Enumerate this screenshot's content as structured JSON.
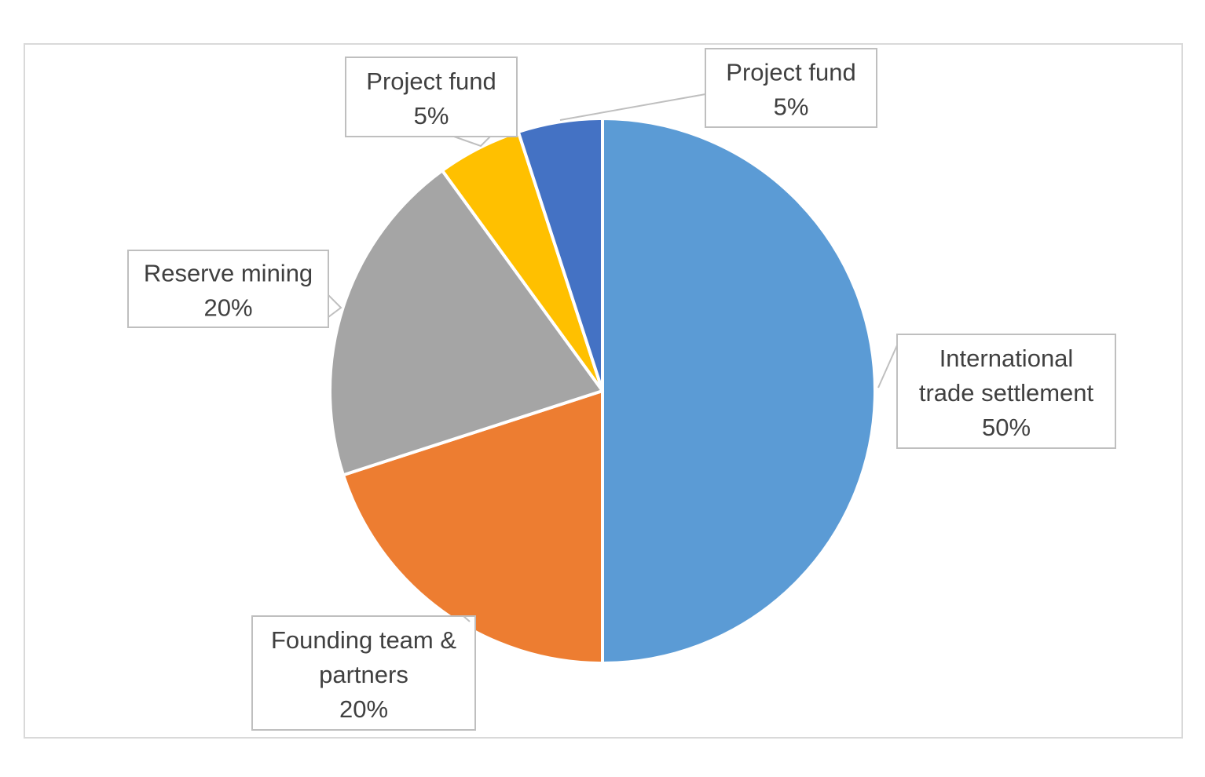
{
  "chart_data": {
    "type": "pie",
    "title": "",
    "slices": [
      {
        "label": "International trade settlement",
        "label_lines": [
          "International",
          "trade settlement"
        ],
        "value": 50,
        "display": "50%",
        "color": "#5B9BD5"
      },
      {
        "label": "Founding team & partners",
        "label_lines": [
          "Founding team &",
          "partners"
        ],
        "value": 20,
        "display": "20%",
        "color": "#ED7D31"
      },
      {
        "label": "Reserve mining",
        "label_lines": [
          "Reserve mining"
        ],
        "value": 20,
        "display": "20%",
        "color": "#A5A5A5"
      },
      {
        "label": "Project fund",
        "label_lines": [
          "Project fund"
        ],
        "value": 5,
        "display": "5%",
        "color": "#FFC000"
      },
      {
        "label": "Project fund",
        "label_lines": [
          "Project fund"
        ],
        "value": 5,
        "display": "5%",
        "color": "#4472C4"
      }
    ],
    "start_angle": "12 o'clock",
    "direction": "clockwise",
    "legend": "none",
    "data_labels": "callouts"
  }
}
